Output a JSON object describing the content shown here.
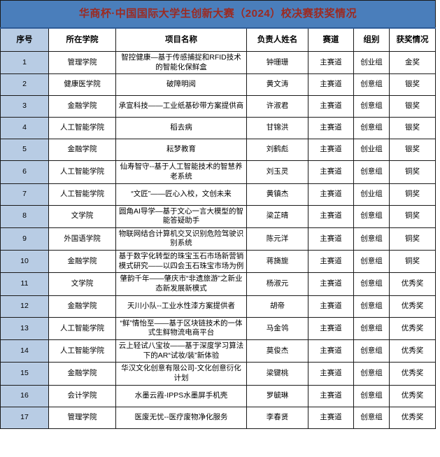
{
  "title": "华商杯·中国国际大学生创新大赛（2024）校决赛获奖情况",
  "colors": {
    "title_bg": "#4a7ebb",
    "title_text": "#9c2a21",
    "first_column_bg": "#b8cce4",
    "grid": "#1a1a1a",
    "cell_bg": "#ffffff"
  },
  "table": {
    "headers": {
      "no": "序号",
      "college": "所在学院",
      "project": "项目名称",
      "leader": "负责人姓名",
      "track": "赛道",
      "group": "组别",
      "award": "获奖情况"
    },
    "rows": [
      {
        "no": "1",
        "college": "管理学院",
        "project": "智控健康—基于传感捕捉和RFID技术的智能化保鲜盒",
        "leader": "钟珊珊",
        "track": "主赛道",
        "group": "创业组",
        "award": "金奖"
      },
      {
        "no": "2",
        "college": "健康医学院",
        "project": "破障明阅",
        "leader": "黄文涛",
        "track": "主赛道",
        "group": "创意组",
        "award": "银奖"
      },
      {
        "no": "3",
        "college": "金融学院",
        "project": "承宣科技——工业纸基砂带方案提供商",
        "leader": "许淑君",
        "track": "主赛道",
        "group": "创意组",
        "award": "银奖"
      },
      {
        "no": "4",
        "college": "人工智能学院",
        "project": "稻去病",
        "leader": "甘锦洪",
        "track": "主赛道",
        "group": "创意组",
        "award": "银奖"
      },
      {
        "no": "5",
        "college": "金融学院",
        "project": "耘梦教育",
        "leader": "刘鹤彪",
        "track": "主赛道",
        "group": "创业组",
        "award": "银奖"
      },
      {
        "no": "6",
        "college": "人工智能学院",
        "project": "仙寿智守--基于人工智能技术的智慧养老系统",
        "leader": "刘玉灵",
        "track": "主赛道",
        "group": "创意组",
        "award": "铜奖"
      },
      {
        "no": "7",
        "college": "人工智能学院",
        "project": "“文匠”——匠心入校，文创未来",
        "leader": "黄镇杰",
        "track": "主赛道",
        "group": "创业组",
        "award": "铜奖"
      },
      {
        "no": "8",
        "college": "文学院",
        "project": "圆角AI导学—基于文心一言大模型的智能答疑助手",
        "leader": "梁芷晴",
        "track": "主赛道",
        "group": "创意组",
        "award": "铜奖"
      },
      {
        "no": "9",
        "college": "外国语学院",
        "project": "物联网结合计算机交叉识别危险驾驶识别系统",
        "leader": "陈元洋",
        "track": "主赛道",
        "group": "创意组",
        "award": "铜奖"
      },
      {
        "no": "10",
        "college": "金融学院",
        "project": "基于数字化转型的珠宝玉石市场新营销模式研究——以四会玉石珠宝市场为例",
        "leader": "蒋旖旎",
        "track": "主赛道",
        "group": "创意组",
        "award": "铜奖"
      },
      {
        "no": "11",
        "college": "文学院",
        "project": "肇韵千年——肇庆市“非遗旅游”之新业态新发展新模式",
        "leader": "杨淑元",
        "track": "主赛道",
        "group": "创意组",
        "award": "优秀奖"
      },
      {
        "no": "12",
        "college": "金融学院",
        "project": "天川小队--工业水性漆方案提供者",
        "leader": "胡帝",
        "track": "主赛道",
        "group": "创意组",
        "award": "优秀奖"
      },
      {
        "no": "13",
        "college": "人工智能学院",
        "project": "“鲜”情怡至——基于区块链技术的一体式生鲜物流电商平台",
        "leader": "马金鸰",
        "track": "主赛道",
        "group": "创意组",
        "award": "优秀奖"
      },
      {
        "no": "14",
        "college": "人工智能学院",
        "project": "云上轻试八宝妆——基于深度学习算法下的AR“试妆/装”新体验",
        "leader": "莫俊杰",
        "track": "主赛道",
        "group": "创意组",
        "award": "优秀奖"
      },
      {
        "no": "15",
        "college": "金融学院",
        "project": "华汉文化创意有限公司-文化创意衍化计划",
        "leader": "梁键桃",
        "track": "主赛道",
        "group": "创意组",
        "award": "优秀奖"
      },
      {
        "no": "16",
        "college": "会计学院",
        "project": "水墨云霞-IPPS水墨屏手机壳",
        "leader": "罗毓琳",
        "track": "主赛道",
        "group": "创意组",
        "award": "优秀奖"
      },
      {
        "no": "17",
        "college": "管理学院",
        "project": "医废无忧--医疗废物净化服务",
        "leader": "李春贤",
        "track": "主赛道",
        "group": "创意组",
        "award": "优秀奖"
      }
    ]
  }
}
